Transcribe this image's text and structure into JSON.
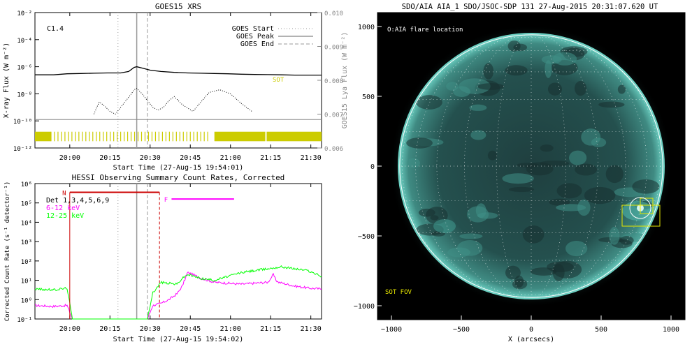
{
  "colors": {
    "flux": "#000000",
    "lya": "#000000",
    "goes_marker": "#999999",
    "obs_bar": "#cccc00",
    "sot": "#cccc00",
    "night": "#cc0000",
    "flare": "#ff00ff",
    "low_band": "#ff00ff",
    "high_band": "#00ff00",
    "aia_color": "#5fd6c6",
    "fov_box": "#e6e600"
  },
  "chart_data": [
    {
      "type": "line",
      "title": "GOES15 XRS",
      "xlabel": "Start Time (27-Aug-15 19:54:01)",
      "ylabel": "X-ray Flux (W m⁻²)",
      "y2label": "GOES15 Lya Flux (W m⁻²)",
      "x_ticks": [
        "20:00",
        "20:15",
        "20:30",
        "20:45",
        "21:00",
        "21:15",
        "21:30"
      ],
      "y_ticks": [
        "10⁻²",
        "10⁻⁴",
        "10⁻⁶",
        "10⁻⁸",
        "10⁻¹⁰",
        "10⁻¹²"
      ],
      "y2_ticks": [
        "0.010",
        "0.009",
        "0.008",
        "0.007",
        "0.006"
      ],
      "ylim_log10": [
        -12,
        -2
      ],
      "y2lim": [
        0.006,
        0.01
      ],
      "xlim_minutes_after_start": [
        -7,
        100
      ],
      "flare_class": "C1.4",
      "legend": [
        "GOES Start",
        "GOES Peak",
        "GOES End"
      ],
      "sot_label": "SOT",
      "goes_start_min": 24,
      "goes_peak_min": 31,
      "goes_end_min": 35,
      "series": [
        {
          "name": "",
          "style": "solid",
          "x": [
            -7,
            0,
            5,
            10,
            15,
            20,
            25,
            28,
            30,
            31,
            33,
            36,
            40,
            45,
            50,
            55,
            60,
            65,
            70,
            75,
            80,
            85,
            90,
            95,
            100
          ],
          "y_log10": [
            -6.6,
            -6.6,
            -6.52,
            -6.5,
            -6.48,
            -6.46,
            -6.46,
            -6.35,
            -6.05,
            -6.0,
            -6.1,
            -6.25,
            -6.35,
            -6.42,
            -6.46,
            -6.48,
            -6.5,
            -6.52,
            -6.55,
            -6.57,
            -6.58,
            -6.6,
            -6.62,
            -6.62,
            -6.62
          ]
        },
        {
          "name": "",
          "style": "dotted",
          "x": [
            15,
            17,
            19,
            21,
            23,
            25,
            27,
            29,
            30,
            31,
            33,
            35,
            37,
            39,
            41,
            43,
            45,
            48,
            52,
            55,
            58,
            62,
            66,
            70,
            74
          ],
          "y_log10": [
            -9.5,
            -8.6,
            -8.9,
            -9.3,
            -9.5,
            -9.0,
            -8.5,
            -8.0,
            -7.7,
            -7.6,
            -8.0,
            -8.5,
            -9.0,
            -9.2,
            -9.0,
            -8.5,
            -8.2,
            -8.8,
            -9.3,
            -8.6,
            -7.9,
            -7.7,
            -8.0,
            -8.7,
            -9.3
          ]
        },
        {
          "name": "",
          "style": "thin",
          "x": [
            -7,
            100
          ],
          "y_log10": [
            -9.9,
            -9.9
          ]
        }
      ]
    },
    {
      "type": "line",
      "title": "HESSI Observing Summary Count Rates, Corrected",
      "xlabel": "Start Time (27-Aug-15 19:54:02)",
      "ylabel": "Corrected Count Rate (s⁻¹ detector⁻¹)",
      "x_ticks": [
        "20:00",
        "20:15",
        "20:30",
        "20:45",
        "21:00",
        "21:15",
        "21:30"
      ],
      "y_ticks": [
        "10⁶",
        "10⁵",
        "10⁴",
        "10³",
        "10²",
        "10¹",
        "10⁰",
        "10⁻¹"
      ],
      "ylim_log10": [
        -1,
        6
      ],
      "xlim_minutes_after_start": [
        -7,
        100
      ],
      "det_label": "Det 1,3,4,5,6,9",
      "night_label": "N",
      "flare_label": "F",
      "night_interval_min": [
        6,
        39.5
      ],
      "flare_interval_min": [
        44,
        59
      ],
      "series": [
        {
          "name": "6-12 keV",
          "x": [
            -7,
            0,
            5,
            7,
            16,
            25,
            30,
            35,
            37,
            40,
            43,
            46,
            48,
            50,
            52,
            55,
            60,
            65,
            70,
            75,
            80,
            82,
            83,
            84,
            90,
            95,
            100
          ],
          "y_log10": [
            -0.3,
            -0.35,
            -0.3,
            -1.0,
            -1.0,
            -1.0,
            -1.0,
            -1.0,
            -0.3,
            -0.2,
            0.0,
            0.3,
            0.7,
            1.4,
            1.3,
            1.1,
            0.9,
            0.85,
            0.8,
            0.85,
            0.9,
            1.3,
            1.0,
            0.9,
            0.7,
            0.6,
            0.55
          ]
        },
        {
          "name": "12-25 keV",
          "x": [
            -7,
            0,
            5,
            7,
            16,
            25,
            30,
            35,
            37,
            38,
            40,
            43,
            46,
            48,
            50,
            55,
            60,
            65,
            70,
            75,
            80,
            85,
            90,
            95,
            100
          ],
          "y_log10": [
            0.55,
            0.5,
            0.6,
            -1.0,
            -1.0,
            -1.0,
            -1.0,
            -1.0,
            0.4,
            0.5,
            0.9,
            0.85,
            0.8,
            1.1,
            1.3,
            1.1,
            1.0,
            1.2,
            1.4,
            1.5,
            1.6,
            1.7,
            1.6,
            1.5,
            1.2
          ]
        }
      ]
    },
    {
      "type": "heatmap",
      "title": "SDO/AIA AIA_1 SDO/JSOC-SDP 131 27-Aug-2015 20:31:07.620 UT",
      "xlabel": "X (arcsecs)",
      "ylabel": "Y (arcsecs)",
      "x_ticks": [
        "−1000",
        "−500",
        "0",
        "500",
        "1000"
      ],
      "y_ticks": [
        "1000",
        "500",
        "0",
        "−500",
        "−1000"
      ],
      "xlim": [
        -1100,
        1100
      ],
      "ylim": [
        -1100,
        1100
      ],
      "legend_label": "O:AIA flare location",
      "sot_fov_label": "SOT FOV",
      "flare_location": [
        780,
        -300
      ],
      "fov_boxes": [
        {
          "x": [
            650,
            920
          ],
          "y": [
            -430,
            -280
          ]
        },
        {
          "x": [
            780,
            870
          ],
          "y": [
            -340,
            -230
          ]
        }
      ],
      "disk_radius": 955
    }
  ]
}
